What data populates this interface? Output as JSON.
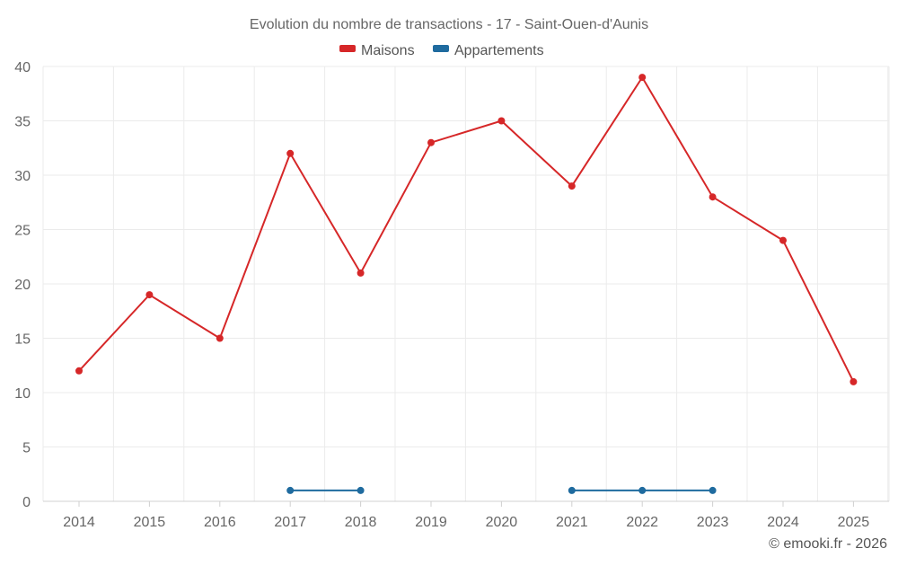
{
  "chart_data": {
    "type": "line",
    "title": "Evolution du nombre de transactions - 17 - Saint-Ouen-d'Aunis",
    "xlabel": "",
    "ylabel": "",
    "categories": [
      "2014",
      "2015",
      "2016",
      "2017",
      "2018",
      "2019",
      "2020",
      "2021",
      "2022",
      "2023",
      "2024",
      "2025"
    ],
    "ylim": [
      0,
      40
    ],
    "yticks": [
      "0",
      "5",
      "10",
      "15",
      "20",
      "25",
      "30",
      "35",
      "40"
    ],
    "grid": true,
    "legend_position": "top-center",
    "series": [
      {
        "name": "Maisons",
        "color": "#d62728",
        "values": [
          12,
          19,
          15,
          32,
          21,
          33,
          35,
          29,
          39,
          28,
          24,
          11
        ]
      },
      {
        "name": "Appartements",
        "color": "#1f6b9f",
        "values": [
          null,
          null,
          null,
          1,
          1,
          null,
          null,
          1,
          1,
          1,
          null,
          null
        ]
      }
    ],
    "credit": "© emooki.fr - 2026"
  }
}
